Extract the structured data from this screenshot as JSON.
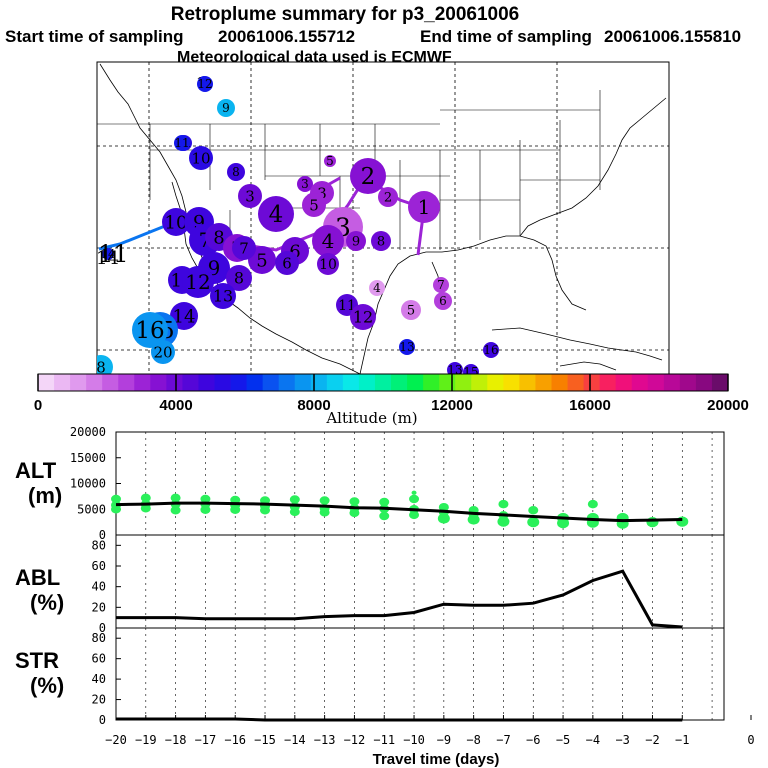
{
  "header": {
    "title": "Retroplume summary for p3_20061006",
    "start_label": "Start time of sampling",
    "start_value": "20061006.155712",
    "end_label": "End time of sampling",
    "end_value": "20061006.155810",
    "met_label": "Meteorological data used is ECMWF"
  },
  "colorbar": {
    "title": "Altitude (m)",
    "ticks": [
      "0",
      "4000",
      "8000",
      "12000",
      "16000",
      "20000"
    ],
    "range": [
      0,
      20000
    ],
    "colors": [
      "#f4d6f8",
      "#ebb8f3",
      "#e09aee",
      "#d47ce8",
      "#c55de2",
      "#b33fdc",
      "#9c23d6",
      "#8611d3",
      "#6d0ad6",
      "#5507d8",
      "#3e05de",
      "#2a0ae3",
      "#1418ea",
      "#0230ee",
      "#0a52f0",
      "#0a75f0",
      "#0a95f0",
      "#0ab4f0",
      "#0ad0f0",
      "#0ae8e8",
      "#00f0c8",
      "#00f0a0",
      "#00f078",
      "#00f050",
      "#30f028",
      "#60f018",
      "#90f010",
      "#c0f008",
      "#e8f000",
      "#f8e000",
      "#f8c000",
      "#f8a000",
      "#f88000",
      "#f86020",
      "#f84040",
      "#f82060",
      "#f0107a",
      "#e00890",
      "#d00898",
      "#b80898",
      "#a0088c",
      "#880880",
      "#6a0c6a"
    ]
  },
  "map": {
    "clusters": [
      {
        "label": "12",
        "color": "#1418ea",
        "size": 6
      },
      {
        "label": "9",
        "color": "#0ab4f0",
        "size": 9
      },
      {
        "label": "11",
        "color": "#2a0ae3",
        "size": 8
      },
      {
        "label": "10",
        "color": "#2a0ae3",
        "size": 12
      },
      {
        "label": "8",
        "color": "#3e05de",
        "size": 9
      },
      {
        "label": "5",
        "color": "#9c23d6",
        "size": 6
      },
      {
        "label": "3",
        "color": "#8611d3",
        "size": 8
      },
      {
        "label": "3",
        "color": "#9c23d6",
        "size": 12
      },
      {
        "label": "2",
        "color": "#8611d3",
        "size": 18
      },
      {
        "label": "2",
        "color": "#9c23d6",
        "size": 10
      },
      {
        "label": "1",
        "color": "#9c23d6",
        "size": 16
      },
      {
        "label": "3",
        "color": "#6d0ad6",
        "size": 12
      },
      {
        "label": "4",
        "color": "#6d0ad6",
        "size": 18
      },
      {
        "label": "5",
        "color": "#9c23d6",
        "size": 12
      },
      {
        "label": "3",
        "color": "#c55de2",
        "size": 20
      },
      {
        "label": "4",
        "color": "#8611d3",
        "size": 16
      },
      {
        "label": "9",
        "color": "#8611d3",
        "size": 10
      },
      {
        "label": "8",
        "color": "#6d0ad6",
        "size": 10
      },
      {
        "label": "10",
        "color": "#6d0ad6",
        "size": 11
      },
      {
        "label": "4",
        "color": "#e09aee",
        "size": 8
      },
      {
        "label": "7",
        "color": "#b33fdc",
        "size": 8
      },
      {
        "label": "6",
        "color": "#b33fdc",
        "size": 9
      },
      {
        "label": "5",
        "color": "#d47ce8",
        "size": 10
      },
      {
        "label": "11",
        "color": "#5507d8",
        "size": 11
      },
      {
        "label": "12",
        "color": "#6d0ad6",
        "size": 13
      },
      {
        "label": "13",
        "color": "#1418ea",
        "size": 8
      },
      {
        "label": "10",
        "color": "#3e05de",
        "size": 14
      },
      {
        "label": "9",
        "color": "#3e05de",
        "size": 15
      },
      {
        "label": "7",
        "color": "#3e05de",
        "size": 16
      },
      {
        "label": "8",
        "color": "#5507d8",
        "size": 14
      },
      {
        "label": "7",
        "color": "#8611d3",
        "size": 14
      },
      {
        "label": "6",
        "color": "#6d0ad6",
        "size": 14
      },
      {
        "label": "5",
        "color": "#6d0ad6",
        "size": 14
      },
      {
        "label": "6",
        "color": "#5507d8",
        "size": 12
      },
      {
        "label": "7",
        "color": "#5507d8",
        "size": 12
      },
      {
        "label": "9",
        "color": "#3e05de",
        "size": 16
      },
      {
        "label": "8",
        "color": "#5507d8",
        "size": 13
      },
      {
        "label": "11",
        "color": "#3e05de",
        "size": 14
      },
      {
        "label": "12",
        "color": "#3e05de",
        "size": 16
      },
      {
        "label": "13",
        "color": "#3e05de",
        "size": 13
      },
      {
        "label": "14",
        "color": "#3e05de",
        "size": 14
      },
      {
        "label": "15",
        "color": "#0a75f0",
        "size": 18
      },
      {
        "label": "16",
        "color": "#0a95f0",
        "size": 18
      },
      {
        "label": "20",
        "color": "#0a95f0",
        "size": 12
      },
      {
        "label": "12",
        "color": "#1418ea",
        "size": 8
      },
      {
        "label": "11",
        "color": "#1418ea",
        "size": 8
      },
      {
        "label": "14",
        "color": "#1418ea",
        "size": 6
      },
      {
        "label": "8",
        "color": "#0ab4f0",
        "size": 12
      },
      {
        "label": "13",
        "color": "#3e05de",
        "size": 8
      },
      {
        "label": "16",
        "color": "#3e05de",
        "size": 8
      },
      {
        "label": "15",
        "color": "#3e05de",
        "size": 8
      }
    ]
  },
  "chart_data": [
    {
      "type": "scatter",
      "panel_label": "ALT",
      "panel_unit": "(m)",
      "x": [
        -20,
        -19,
        -18,
        -17,
        -16,
        -15,
        -14,
        -13,
        -12,
        -11,
        -10,
        -9,
        -8,
        -7,
        -6,
        -5,
        -4,
        -3,
        -2,
        -1
      ],
      "median_line": [
        5900,
        6000,
        6200,
        6200,
        6100,
        6000,
        5800,
        5600,
        5300,
        5200,
        4900,
        4600,
        4200,
        3900,
        3600,
        3300,
        3000,
        2800,
        2900,
        3000
      ],
      "scatter_points": [
        {
          "x": -20,
          "y": 5000
        },
        {
          "x": -20,
          "y": 5800
        },
        {
          "x": -20,
          "y": 7000
        },
        {
          "x": -19,
          "y": 5200
        },
        {
          "x": -19,
          "y": 6000
        },
        {
          "x": -19,
          "y": 7200
        },
        {
          "x": -18,
          "y": 4800
        },
        {
          "x": -18,
          "y": 6000
        },
        {
          "x": -18,
          "y": 7200
        },
        {
          "x": -17,
          "y": 4900
        },
        {
          "x": -17,
          "y": 6000
        },
        {
          "x": -17,
          "y": 7000
        },
        {
          "x": -16,
          "y": 4900
        },
        {
          "x": -16,
          "y": 5800
        },
        {
          "x": -16,
          "y": 6800
        },
        {
          "x": -15,
          "y": 4800
        },
        {
          "x": -15,
          "y": 5600
        },
        {
          "x": -15,
          "y": 6700
        },
        {
          "x": -14,
          "y": 4500
        },
        {
          "x": -14,
          "y": 5500
        },
        {
          "x": -14,
          "y": 6900
        },
        {
          "x": -13,
          "y": 4400
        },
        {
          "x": -13,
          "y": 5200
        },
        {
          "x": -13,
          "y": 6700
        },
        {
          "x": -12,
          "y": 4300
        },
        {
          "x": -12,
          "y": 5200
        },
        {
          "x": -12,
          "y": 6500
        },
        {
          "x": -11,
          "y": 3700
        },
        {
          "x": -11,
          "y": 5100
        },
        {
          "x": -11,
          "y": 6400
        },
        {
          "x": -10,
          "y": 3900
        },
        {
          "x": -10,
          "y": 5000
        },
        {
          "x": -10,
          "y": 7000
        },
        {
          "x": -10,
          "y": 8200
        },
        {
          "x": -9,
          "y": 3200
        },
        {
          "x": -9,
          "y": 4400
        },
        {
          "x": -9,
          "y": 5400
        },
        {
          "x": -8,
          "y": 3000
        },
        {
          "x": -8,
          "y": 4000
        },
        {
          "x": -8,
          "y": 4800
        },
        {
          "x": -7,
          "y": 2600
        },
        {
          "x": -7,
          "y": 3800
        },
        {
          "x": -7,
          "y": 6000
        },
        {
          "x": -6,
          "y": 2500
        },
        {
          "x": -6,
          "y": 4800
        },
        {
          "x": -5,
          "y": 2300
        },
        {
          "x": -5,
          "y": 3300
        },
        {
          "x": -4,
          "y": 2400
        },
        {
          "x": -4,
          "y": 3300
        },
        {
          "x": -4,
          "y": 6000
        },
        {
          "x": -3,
          "y": 2200
        },
        {
          "x": -3,
          "y": 3300
        },
        {
          "x": -2,
          "y": 2500
        },
        {
          "x": -1,
          "y": 2600
        }
      ],
      "yticks": [
        "0",
        "5000",
        "10000",
        "15000",
        "20000"
      ],
      "ylim": [
        0,
        20000
      ]
    },
    {
      "type": "line",
      "panel_label": "ABL",
      "panel_unit": "(%)",
      "x": [
        -20,
        -19,
        -18,
        -17,
        -16,
        -15,
        -14,
        -13,
        -12,
        -11,
        -10,
        -9,
        -8,
        -7,
        -6,
        -5,
        -4,
        -3,
        -2,
        -1
      ],
      "values": [
        10,
        10,
        10,
        9,
        9,
        9,
        9,
        11,
        12,
        12,
        15,
        23,
        22,
        22,
        24,
        32,
        46,
        55,
        3,
        1
      ],
      "yticks": [
        "0",
        "20",
        "40",
        "60",
        "80"
      ],
      "ylim": [
        0,
        90
      ]
    },
    {
      "type": "line",
      "panel_label": "STR",
      "panel_unit": "(%)",
      "x": [
        -20,
        -19,
        -18,
        -17,
        -16,
        -15,
        -14,
        -13,
        -12,
        -11,
        -10,
        -9,
        -8,
        -7,
        -6,
        -5,
        -4,
        -3,
        -2,
        -1
      ],
      "values": [
        1,
        1,
        1,
        1,
        1,
        0,
        0,
        0,
        0,
        0,
        0,
        0,
        0,
        0,
        0,
        0,
        0,
        0,
        0,
        0
      ],
      "yticks": [
        "0",
        "20",
        "40",
        "60",
        "80"
      ],
      "ylim": [
        0,
        90
      ]
    }
  ],
  "xaxis": {
    "label": "Travel time (days)",
    "ticks": [
      "−20",
      "−19",
      "−18",
      "−17",
      "−16",
      "−15",
      "−14",
      "−13",
      "−12",
      "−11",
      "−10",
      "−9",
      "−8",
      "−7",
      "−6",
      "−5",
      "−4",
      "−3",
      "−2",
      "−1",
      "0"
    ],
    "range": [
      -20,
      0
    ]
  }
}
